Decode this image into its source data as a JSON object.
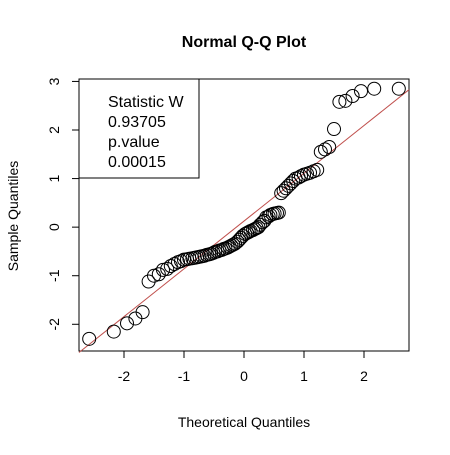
{
  "chart_data": {
    "type": "scatter",
    "title": "Normal Q-Q Plot",
    "xlabel": "Theoretical Quantiles",
    "ylabel": "Sample Quantiles",
    "xlim": [
      -2.75,
      2.75
    ],
    "ylim": [
      -2.55,
      3.05
    ],
    "x_ticks": [
      -2,
      -1,
      0,
      1,
      2
    ],
    "y_ticks": [
      -2,
      -1,
      0,
      1,
      2,
      3
    ],
    "x_tick_labels": [
      "-2",
      "-1",
      "0",
      "1",
      "2"
    ],
    "y_tick_labels": [
      "-2",
      "-1",
      "0",
      "1",
      "2",
      "3"
    ],
    "grid": false,
    "legend": {
      "position": "top-left",
      "lines": [
        "Statistic W",
        "0.93705",
        "p.value",
        "0.00015"
      ]
    },
    "reference_line": {
      "color": "#c0504d",
      "points": [
        [
          -2.75,
          -2.58
        ],
        [
          2.75,
          2.83
        ]
      ]
    },
    "marker_color": "#000000",
    "points": {
      "x": [
        -2.58,
        -2.17,
        -1.95,
        -1.81,
        -1.69,
        -1.59,
        -1.5,
        -1.42,
        -1.35,
        -1.28,
        -1.22,
        -1.16,
        -1.1,
        -1.05,
        -1.0,
        -0.95,
        -0.91,
        -0.86,
        -0.82,
        -0.78,
        -0.74,
        -0.7,
        -0.66,
        -0.62,
        -0.58,
        -0.55,
        -0.51,
        -0.48,
        -0.44,
        -0.41,
        -0.37,
        -0.34,
        -0.31,
        -0.27,
        -0.24,
        -0.21,
        -0.18,
        -0.15,
        -0.11,
        -0.08,
        -0.05,
        -0.02,
        0.02,
        0.05,
        0.08,
        0.11,
        0.15,
        0.18,
        0.21,
        0.24,
        0.27,
        0.31,
        0.34,
        0.37,
        0.41,
        0.44,
        0.48,
        0.51,
        0.55,
        0.58,
        0.62,
        0.66,
        0.7,
        0.74,
        0.78,
        0.82,
        0.86,
        0.91,
        0.95,
        1.0,
        1.05,
        1.1,
        1.16,
        1.22,
        1.28,
        1.35,
        1.42,
        1.5,
        1.59,
        1.69,
        1.81,
        1.95,
        2.17,
        2.58
      ],
      "y": [
        -2.3,
        -2.15,
        -1.98,
        -1.88,
        -1.75,
        -1.12,
        -1.0,
        -0.97,
        -0.88,
        -0.86,
        -0.8,
        -0.76,
        -0.72,
        -0.7,
        -0.67,
        -0.66,
        -0.65,
        -0.64,
        -0.63,
        -0.62,
        -0.61,
        -0.6,
        -0.59,
        -0.57,
        -0.56,
        -0.55,
        -0.53,
        -0.51,
        -0.5,
        -0.48,
        -0.47,
        -0.45,
        -0.44,
        -0.42,
        -0.4,
        -0.38,
        -0.36,
        -0.34,
        -0.3,
        -0.26,
        -0.22,
        -0.18,
        -0.14,
        -0.12,
        -0.1,
        -0.08,
        -0.06,
        -0.04,
        -0.02,
        0.0,
        0.05,
        0.1,
        0.13,
        0.2,
        0.22,
        0.25,
        0.27,
        0.28,
        0.29,
        0.3,
        0.7,
        0.75,
        0.8,
        0.85,
        0.9,
        0.95,
        1.0,
        1.02,
        1.05,
        1.08,
        1.1,
        1.12,
        1.15,
        1.18,
        1.55,
        1.6,
        1.65,
        2.02,
        2.58,
        2.6,
        2.7,
        2.8,
        2.85,
        2.85
      ]
    }
  }
}
